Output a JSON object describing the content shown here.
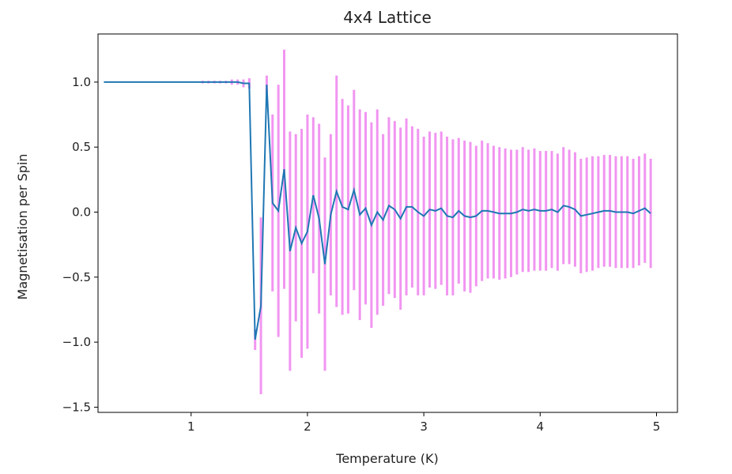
{
  "chart_data": {
    "type": "line",
    "title": "4x4 Lattice",
    "xlabel": "Temperature (K)",
    "ylabel": "Magnetisation per Spin",
    "xlim": [
      0.2,
      5.18
    ],
    "ylim": [
      -1.54,
      1.37
    ],
    "xticks": [
      1,
      2,
      3,
      4,
      5
    ],
    "yticks": [
      -1.5,
      -1.0,
      -0.5,
      0.0,
      0.5,
      1.0
    ],
    "ytick_labels": [
      "−1.5",
      "−1.0",
      "−0.5",
      "0.0",
      "0.5",
      "1.0"
    ],
    "grid": false,
    "legend": "none",
    "colors": {
      "line": "#1f77b4",
      "errorbar": "#ee82ee"
    },
    "series": [
      {
        "x": [
          0.25,
          0.3,
          0.35,
          0.4,
          0.45,
          0.5,
          0.55,
          0.6,
          0.65,
          0.7,
          0.75,
          0.8,
          0.85,
          0.9,
          0.95,
          1.0,
          1.05,
          1.1,
          1.15,
          1.2,
          1.25,
          1.3,
          1.35,
          1.4,
          1.45,
          1.5,
          1.55,
          1.6,
          1.65,
          1.7,
          1.75,
          1.8,
          1.85,
          1.9,
          1.95,
          2.0,
          2.05,
          2.1,
          2.15,
          2.2,
          2.25,
          2.3,
          2.35,
          2.4,
          2.45,
          2.5,
          2.55,
          2.6,
          2.65,
          2.7,
          2.75,
          2.8,
          2.85,
          2.9,
          2.95,
          3.0,
          3.05,
          3.1,
          3.15,
          3.2,
          3.25,
          3.3,
          3.35,
          3.4,
          3.45,
          3.5,
          3.55,
          3.6,
          3.65,
          3.7,
          3.75,
          3.8,
          3.85,
          3.9,
          3.95,
          4.0,
          4.05,
          4.1,
          4.15,
          4.2,
          4.25,
          4.3,
          4.35,
          4.4,
          4.45,
          4.5,
          4.55,
          4.6,
          4.65,
          4.7,
          4.75,
          4.8,
          4.85,
          4.9,
          4.95
        ],
        "y": [
          1.0,
          1.0,
          1.0,
          1.0,
          1.0,
          1.0,
          1.0,
          1.0,
          1.0,
          1.0,
          1.0,
          1.0,
          1.0,
          1.0,
          1.0,
          1.0,
          1.0,
          1.0,
          1.0,
          1.0,
          1.0,
          1.0,
          1.0,
          1.0,
          0.99,
          0.99,
          -0.98,
          -0.72,
          0.98,
          0.07,
          0.01,
          0.33,
          -0.3,
          -0.12,
          -0.24,
          -0.15,
          0.13,
          -0.05,
          -0.4,
          -0.02,
          0.16,
          0.04,
          0.02,
          0.17,
          -0.02,
          0.03,
          -0.1,
          0.0,
          -0.06,
          0.05,
          0.02,
          -0.05,
          0.04,
          0.04,
          0.0,
          -0.03,
          0.02,
          0.01,
          0.03,
          -0.03,
          -0.04,
          0.01,
          -0.03,
          -0.04,
          -0.03,
          0.01,
          0.01,
          0.0,
          -0.01,
          -0.01,
          -0.01,
          0.0,
          0.02,
          0.01,
          0.02,
          0.01,
          0.01,
          0.02,
          0.0,
          0.05,
          0.04,
          0.02,
          -0.03,
          -0.02,
          -0.01,
          0.0,
          0.01,
          0.01,
          0.0,
          0.0,
          0.0,
          -0.01,
          0.01,
          0.03,
          -0.01
        ],
        "yerr": [
          0.0,
          0.0,
          0.0,
          0.0,
          0.0,
          0.0,
          0.0,
          0.0,
          0.0,
          0.0,
          0.0,
          0.0,
          0.0,
          0.0,
          0.0,
          0.0,
          0.0,
          0.01,
          0.01,
          0.01,
          0.01,
          0.01,
          0.02,
          0.02,
          0.03,
          0.04,
          0.08,
          0.68,
          0.07,
          0.68,
          0.97,
          0.92,
          0.92,
          0.72,
          0.88,
          0.9,
          0.6,
          0.73,
          0.82,
          0.62,
          0.89,
          0.83,
          0.8,
          0.77,
          0.81,
          0.74,
          0.79,
          0.79,
          0.66,
          0.68,
          0.68,
          0.7,
          0.68,
          0.62,
          0.64,
          0.61,
          0.6,
          0.6,
          0.59,
          0.61,
          0.6,
          0.56,
          0.58,
          0.58,
          0.54,
          0.54,
          0.52,
          0.51,
          0.51,
          0.5,
          0.49,
          0.48,
          0.48,
          0.47,
          0.47,
          0.46,
          0.46,
          0.45,
          0.45,
          0.45,
          0.44,
          0.44,
          0.44,
          0.44,
          0.44,
          0.43,
          0.43,
          0.43,
          0.43,
          0.43,
          0.43,
          0.42,
          0.42,
          0.42,
          0.42
        ]
      }
    ]
  }
}
